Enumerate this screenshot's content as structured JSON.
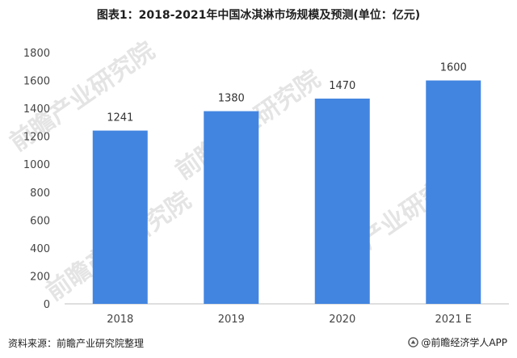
{
  "title": "图表1：2018-2021年中国冰淇淋市场规模及预测(单位：亿元)",
  "source": "资料来源：前瞻产业研究院整理",
  "brand": {
    "icon": "qianzhan-logo-icon",
    "text": "@前瞻经济学人APP"
  },
  "watermark": "前瞻产业研究院",
  "colors": {
    "bar": "#4285e0",
    "axis": "#bfbfbf",
    "text": "#444444"
  },
  "chart_data": {
    "type": "bar",
    "title": "图表1：2018-2021年中国冰淇淋市场规模及预测(单位：亿元)",
    "categories": [
      "2018",
      "2019",
      "2020",
      "2021 E"
    ],
    "values": [
      1241,
      1380,
      1470,
      1600
    ],
    "data_labels": [
      "1241",
      "1380",
      "1470",
      "1600"
    ],
    "yticks": [
      "0",
      "200",
      "400",
      "600",
      "800",
      "1000",
      "1200",
      "1400",
      "1600",
      "1800"
    ],
    "ylim": [
      0,
      1800
    ],
    "grid": false,
    "xlabel": "",
    "ylabel": ""
  }
}
